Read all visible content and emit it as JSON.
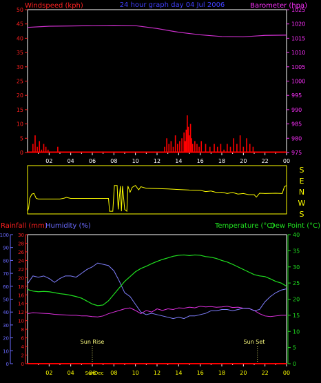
{
  "colors": {
    "background": "#000000",
    "frame": "#ffffff",
    "wind_axis": "#ff2020",
    "wind_bars": "#ff0000",
    "baro_axis": "#ff30ff",
    "baro_line": "#d030d0",
    "title": "#4040ff",
    "dir_frame": "#ffff00",
    "dir_line": "#ffff00",
    "dir_letters": "#ffff00",
    "rain_axis": "#ff2020",
    "humidity_axis": "#6a6aff",
    "humidity_line": "#8080ff",
    "temp_axis": "#20e020",
    "temp_line": "#20e020",
    "dew_line": "#e030e0",
    "rain_line": "#ff0000",
    "sun_marker": "#ffff80",
    "x_tick_label": "#ffff00"
  },
  "chart_data": [
    {
      "type": "bar",
      "panel": "wind_baro",
      "title": "24 hour graph day  04 Jul 2006",
      "ylabel_left": "Windspeed (kph)",
      "ylabel_right": "Barometer (hpa)",
      "xlim": [
        0,
        24
      ],
      "ylim_left": [
        0,
        50
      ],
      "ylim_right": [
        975,
        1025
      ],
      "yticks_left": [
        "0",
        "5",
        "10",
        "15",
        "20",
        "25",
        "30",
        "35",
        "40",
        "45",
        "50"
      ],
      "yticks_right": [
        "975",
        "980",
        "985",
        "990",
        "995",
        "1000",
        "1005",
        "1010",
        "1015",
        "1020",
        "1025"
      ],
      "xtick_labels": [
        "02",
        "04",
        "06",
        "08",
        "10",
        "12",
        "14",
        "16",
        "18",
        "20",
        "22",
        "00"
      ],
      "grid": false,
      "series": [
        {
          "kind": "bars",
          "axis": "left",
          "x": [
            0.5,
            0.7,
            0.9,
            1.1,
            1.3,
            1.5,
            1.7,
            1.9,
            2.8,
            12.7,
            12.9,
            13.1,
            13.3,
            13.5,
            13.7,
            13.9,
            14.1,
            14.3,
            14.5,
            14.6,
            14.7,
            14.8,
            14.9,
            15.0,
            15.1,
            15.2,
            15.3,
            15.5,
            15.7,
            15.9,
            16.1,
            16.5,
            16.9,
            17.3,
            17.6,
            17.9,
            18.2,
            18.5,
            18.8,
            19.1,
            19.4,
            19.7,
            20.0,
            20.3,
            20.6,
            20.9
          ],
          "values": [
            3,
            6,
            2,
            4,
            1,
            3,
            2,
            1,
            2,
            2,
            5,
            3,
            4,
            2,
            6,
            3,
            4,
            5,
            7,
            4,
            8,
            13,
            9,
            6,
            10,
            5,
            3,
            4,
            3,
            2,
            4,
            3,
            2,
            3,
            2,
            3,
            1,
            3,
            2,
            5,
            3,
            6,
            2,
            5,
            3,
            2
          ]
        },
        {
          "kind": "line",
          "axis": "right",
          "x": [
            0,
            2,
            4,
            6,
            8,
            10,
            12,
            14,
            16,
            18,
            20,
            22,
            24
          ],
          "values": [
            1018.8,
            1019.2,
            1019.3,
            1019.4,
            1019.5,
            1019.4,
            1018.4,
            1017.1,
            1016.2,
            1015.6,
            1015.5,
            1016.0,
            1016.1
          ]
        }
      ]
    },
    {
      "type": "line",
      "panel": "wind_direction",
      "xlim": [
        0,
        24
      ],
      "ylim": [
        0,
        360
      ],
      "direction_labels": [
        "S",
        "E",
        "N",
        "W",
        "S"
      ],
      "series": [
        {
          "name": "",
          "x": [
            0,
            0.1,
            0.2,
            0.4,
            0.6,
            0.8,
            1.0,
            2,
            3,
            3.4,
            3.6,
            4,
            5,
            6,
            7,
            7.5,
            7.6,
            7.9,
            8.0,
            8.05,
            8.3,
            8.4,
            8.6,
            8.7,
            8.8,
            9.0,
            9.2,
            9.3,
            9.5,
            9.7,
            10,
            10.3,
            10.5,
            11,
            12,
            13,
            14,
            15,
            16,
            16.5,
            17,
            17.5,
            18,
            18.5,
            19,
            19.5,
            20,
            20.5,
            21,
            21.2,
            21.5,
            22,
            23,
            23.6,
            23.8,
            24
          ],
          "values": [
            5,
            30,
            110,
            145,
            150,
            110,
            105,
            105,
            105,
            112,
            118,
            110,
            110,
            110,
            110,
            110,
            5,
            5,
            150,
            215,
            215,
            20,
            210,
            5,
            210,
            20,
            5,
            210,
            160,
            200,
            215,
            180,
            205,
            192,
            190,
            187,
            182,
            178,
            176,
            165,
            170,
            158,
            160,
            150,
            158,
            145,
            150,
            140,
            140,
            120,
            152,
            150,
            152,
            150,
            205,
            215
          ]
        }
      ]
    },
    {
      "type": "line",
      "panel": "temp_hum",
      "ylabel_left_1": "Rainfall (mm)",
      "ylabel_left_2": "Humidity (%)",
      "ylabel_right_1": "Temperature (°C)",
      "ylabel_right_2": "Dew Point (°C)",
      "xlim": [
        0,
        24
      ],
      "ylim_humidity": [
        0,
        100
      ],
      "ylim_rain": [
        0,
        30
      ],
      "ylim_temp": [
        0,
        40
      ],
      "yticks_humidity": [
        "0",
        "10",
        "20",
        "30",
        "40",
        "50",
        "60",
        "70",
        "80",
        "90",
        "100"
      ],
      "yticks_rain": [
        "0",
        "2",
        "4",
        "6",
        "8",
        "10",
        "12",
        "14",
        "16",
        "18",
        "20",
        "22",
        "24",
        "26",
        "28",
        "30"
      ],
      "yticks_temp": [
        "0",
        "5",
        "10",
        "15",
        "20",
        "25",
        "30",
        "35",
        "40"
      ],
      "xtick_labels": [
        "02",
        "04",
        "06",
        "08",
        "10",
        "12",
        "14",
        "16",
        "18",
        "20",
        "22",
        "00"
      ],
      "annotations": [
        {
          "text": "Sun Rise",
          "x": 6.0
        },
        {
          "text": "Sun Set",
          "x": 21.3
        },
        {
          "text": "SunDec",
          "x": 6.0
        }
      ],
      "grid": false,
      "series": [
        {
          "name": "Humidity (%)",
          "axis": "humidity",
          "x": [
            0,
            0.5,
            1,
            1.5,
            2,
            2.5,
            3,
            3.5,
            4,
            4.5,
            5,
            5.5,
            6,
            6.5,
            7,
            7.5,
            8,
            8.5,
            9,
            9.5,
            10,
            10.5,
            11,
            11.5,
            12,
            12.5,
            13,
            13.5,
            14,
            14.5,
            15,
            15.5,
            16,
            16.5,
            17,
            17.5,
            18,
            18.5,
            19,
            19.5,
            20,
            20.5,
            21,
            21.5,
            22,
            22.5,
            23,
            23.5,
            24
          ],
          "values": [
            62,
            68,
            67,
            68,
            66,
            63,
            66,
            68,
            68,
            67,
            70,
            73,
            75,
            78,
            77,
            76,
            72,
            64,
            55,
            52,
            46,
            40,
            38,
            39,
            38,
            37,
            36,
            35,
            36,
            35,
            37,
            37,
            38,
            39,
            41,
            41,
            42,
            42,
            41,
            42,
            43,
            43,
            41,
            42,
            48,
            52,
            55,
            57,
            58
          ]
        },
        {
          "name": "Temperature (°C)",
          "axis": "temp",
          "x": [
            0,
            0.5,
            1,
            1.5,
            2,
            2.5,
            3,
            3.5,
            4,
            4.5,
            5,
            5.5,
            6,
            6.5,
            7,
            7.5,
            8,
            8.5,
            9,
            9.5,
            10,
            10.5,
            11,
            11.5,
            12,
            12.5,
            13,
            13.5,
            14,
            14.5,
            15,
            15.5,
            16,
            16.5,
            17,
            17.5,
            18,
            18.5,
            19,
            19.5,
            20,
            20.5,
            21,
            21.5,
            22,
            22.5,
            23,
            23.5,
            24
          ],
          "values": [
            23,
            22.5,
            22.3,
            22.4,
            22.3,
            22,
            21.7,
            21.5,
            21.2,
            20.8,
            20.3,
            19.4,
            18.5,
            18,
            18.2,
            19.5,
            21.5,
            23.5,
            25.5,
            27,
            28.5,
            29.5,
            30.2,
            31,
            31.7,
            32.3,
            32.8,
            33.3,
            33.6,
            33.7,
            33.5,
            33.7,
            33.6,
            33.2,
            33,
            32.6,
            32,
            31.5,
            30.8,
            30,
            29.2,
            28.4,
            27.6,
            27.2,
            27,
            26.3,
            25.5,
            25,
            24
          ]
        },
        {
          "name": "Dew Point (°C)",
          "axis": "temp",
          "x": [
            0,
            0.5,
            1,
            1.5,
            2,
            2.5,
            3,
            3.5,
            4,
            4.5,
            5,
            5.5,
            6,
            6.5,
            7,
            7.5,
            8,
            8.5,
            9,
            9.5,
            10,
            10.5,
            11,
            11.5,
            12,
            12.5,
            13,
            13.5,
            14,
            14.5,
            15,
            15.5,
            16,
            16.5,
            17,
            17.5,
            18,
            18.5,
            19,
            19.5,
            20,
            20.5,
            21,
            21.5,
            22,
            22.5,
            23,
            23.5,
            24
          ],
          "values": [
            15.5,
            15.8,
            15.7,
            15.6,
            15.5,
            15.3,
            15.2,
            15.1,
            15,
            15,
            14.8,
            14.8,
            14.6,
            14.5,
            14.8,
            15.5,
            16,
            16.5,
            17,
            17.3,
            16.5,
            15.5,
            16.5,
            16,
            17,
            16.5,
            17,
            16.8,
            17.3,
            17.2,
            17.5,
            17.3,
            17.8,
            17.6,
            17.7,
            17.5,
            17.6,
            17.8,
            17.4,
            17.5,
            17.2,
            17.1,
            16.5,
            15.5,
            14.8,
            14.6,
            14.8,
            15,
            15
          ]
        },
        {
          "name": "Rainfall (mm)",
          "axis": "rain",
          "x": [
            0,
            24
          ],
          "values": [
            0,
            0
          ]
        }
      ]
    }
  ]
}
